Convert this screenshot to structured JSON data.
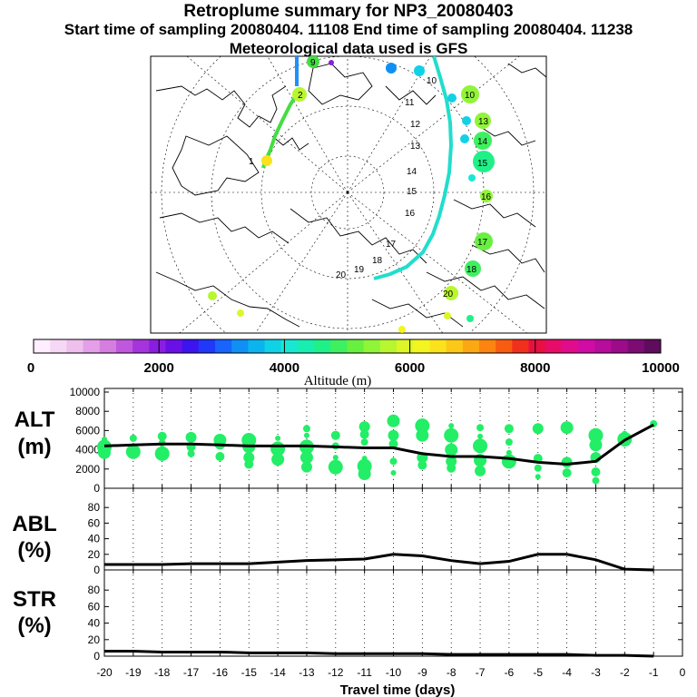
{
  "header": {
    "title": "Retroplume summary for NP3_20080403",
    "sampling_line": "Start time of sampling 20080404. 11108     End time of sampling 20080404. 11238",
    "met_line": "Meteorological data used is GFS"
  },
  "colors": {
    "points": "#22ee66",
    "line": "#000000",
    "frame": "#000000",
    "grid": "#000000",
    "trajectory_blue": "#1e90ff",
    "trajectory_cyan": "#22ddcc"
  },
  "map": {
    "day_labels": [
      "1",
      "2",
      "9",
      "10",
      "11",
      "12",
      "13",
      "14",
      "15",
      "16",
      "17",
      "18",
      "19",
      "20"
    ],
    "cluster_numbers": [
      "8",
      "10",
      "11",
      "13",
      "14",
      "15",
      "16",
      "17",
      "18",
      "19",
      "20"
    ]
  },
  "colorbar": {
    "min_label": "0",
    "labels": [
      "2000",
      "4000",
      "6000",
      "8000",
      "10000"
    ],
    "title": "Altitude (m)",
    "colors": [
      "#ffeeff",
      "#f6d8f6",
      "#efbfee",
      "#e59fe8",
      "#d67ee0",
      "#c058dd",
      "#a534dd",
      "#8a1ee0",
      "#6a10e6",
      "#3c14f0",
      "#2038f8",
      "#1864fc",
      "#1090f4",
      "#0cb4ee",
      "#10d2e6",
      "#18e8d2",
      "#18eeb0",
      "#20f088",
      "#3ef060",
      "#68f040",
      "#90f438",
      "#b8f630",
      "#dcf628",
      "#f4f420",
      "#fae21c",
      "#fcc818",
      "#fca814",
      "#fc8410",
      "#f85c10",
      "#f0301c",
      "#e81040",
      "#e80c68",
      "#e00c8c",
      "#d00ca4",
      "#b80c9c",
      "#9c0c88",
      "#7c0c74",
      "#600c5c"
    ]
  },
  "xaxis": {
    "title": "Travel time (days)",
    "ticks": [
      "-20",
      "-19",
      "-18",
      "-17",
      "-16",
      "-15",
      "-14",
      "-13",
      "-12",
      "-11",
      "-10",
      "-9",
      "-8",
      "-7",
      "-6",
      "-5",
      "-4",
      "-3",
      "-2",
      "-1",
      "0"
    ]
  },
  "panels": [
    {
      "label_line1": "ALT",
      "label_line2": "(m)",
      "yticks": [
        "10000",
        "8000",
        "6000",
        "4000",
        "2000",
        "0"
      ]
    },
    {
      "label_line1": "ABL",
      "label_line2": "(%)",
      "yticks": [
        "80",
        "60",
        "40",
        "20",
        "0"
      ]
    },
    {
      "label_line1": "STR",
      "label_line2": "(%)",
      "yticks": [
        "80",
        "60",
        "40",
        "20",
        "0"
      ]
    }
  ],
  "chart_data": [
    {
      "type": "line",
      "title": "ALT",
      "xlabel": "Travel time (days)",
      "ylabel": "(m)",
      "xlim": [
        -20,
        0
      ],
      "ylim": [
        0,
        10000
      ],
      "x": [
        -20,
        -19,
        -18,
        -17,
        -16,
        -15,
        -14,
        -13,
        -12,
        -11,
        -10,
        -9,
        -8,
        -7,
        -6,
        -5,
        -4,
        -3,
        -2,
        -1
      ],
      "series": [
        {
          "name": "mean altitude",
          "values": [
            4400,
            4500,
            4600,
            4600,
            4500,
            4400,
            4400,
            4400,
            4300,
            4200,
            4200,
            3600,
            3300,
            3300,
            3100,
            2700,
            2500,
            2800,
            5000,
            6600
          ]
        }
      ],
      "clusters": [
        {
          "x": -20,
          "y": [
            5100,
            4300,
            3700
          ]
        },
        {
          "x": -19,
          "y": [
            5200,
            4200,
            3800
          ]
        },
        {
          "x": -18,
          "y": [
            5400,
            4700,
            4000,
            3600
          ]
        },
        {
          "x": -17,
          "y": [
            5300,
            4300,
            3600
          ]
        },
        {
          "x": -16,
          "y": [
            5000,
            4600,
            3300
          ]
        },
        {
          "x": -15,
          "y": [
            5000,
            4300,
            3200,
            2500
          ]
        },
        {
          "x": -14,
          "y": [
            5200,
            4100,
            3000
          ]
        },
        {
          "x": -13,
          "y": [
            6200,
            5500,
            4300,
            3200,
            2200
          ]
        },
        {
          "x": -12,
          "y": [
            5500,
            4400,
            3200,
            2200
          ]
        },
        {
          "x": -11,
          "y": [
            6400,
            5600,
            4800,
            3100,
            2300,
            1500
          ]
        },
        {
          "x": -10,
          "y": [
            7000,
            5500,
            4600,
            2800,
            1600
          ]
        },
        {
          "x": -9,
          "y": [
            6500,
            5500,
            3200,
            2400
          ]
        },
        {
          "x": -8,
          "y": [
            6500,
            5500,
            4000,
            2800,
            2100
          ]
        },
        {
          "x": -7,
          "y": [
            6300,
            5400,
            4400,
            2900,
            1800
          ]
        },
        {
          "x": -6,
          "y": [
            6200,
            4800,
            3700,
            2800
          ]
        },
        {
          "x": -5,
          "y": [
            6200,
            3100,
            2100,
            1200
          ]
        },
        {
          "x": -4,
          "y": [
            6300,
            2700,
            1600
          ]
        },
        {
          "x": -3,
          "y": [
            5500,
            4500,
            3200,
            1700,
            800
          ]
        },
        {
          "x": -2,
          "y": [
            5700,
            5100
          ]
        },
        {
          "x": -1,
          "y": [
            6700
          ]
        }
      ]
    },
    {
      "type": "line",
      "title": "ABL",
      "xlabel": "Travel time (days)",
      "ylabel": "(%)",
      "xlim": [
        -20,
        0
      ],
      "ylim": [
        0,
        100
      ],
      "x": [
        -20,
        -19,
        -18,
        -17,
        -16,
        -15,
        -14,
        -13,
        -12,
        -11,
        -10,
        -9,
        -8,
        -7,
        -6,
        -5,
        -4,
        -3,
        -2,
        -1
      ],
      "series": [
        {
          "name": "ABL fraction",
          "values": [
            7,
            7,
            7,
            8,
            8,
            8,
            10,
            12,
            13,
            14,
            20,
            18,
            12,
            8,
            11,
            20,
            20,
            13,
            1,
            0
          ]
        }
      ]
    },
    {
      "type": "line",
      "title": "STR",
      "xlabel": "Travel time (days)",
      "ylabel": "(%)",
      "xlim": [
        -20,
        0
      ],
      "ylim": [
        0,
        100
      ],
      "x": [
        -20,
        -19,
        -18,
        -17,
        -16,
        -15,
        -14,
        -13,
        -12,
        -11,
        -10,
        -9,
        -8,
        -7,
        -6,
        -5,
        -4,
        -3,
        -2,
        -1
      ],
      "series": [
        {
          "name": "STR fraction",
          "values": [
            6,
            6,
            5,
            5,
            5,
            4,
            4,
            4,
            3,
            3,
            3,
            3,
            2,
            2,
            2,
            2,
            2,
            1,
            1,
            0
          ]
        }
      ]
    }
  ]
}
